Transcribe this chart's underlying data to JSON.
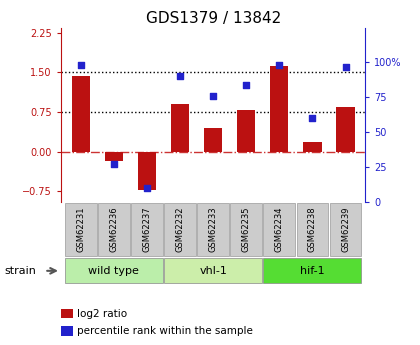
{
  "title": "GDS1379 / 13842",
  "samples": [
    "GSM62231",
    "GSM62236",
    "GSM62237",
    "GSM62232",
    "GSM62233",
    "GSM62235",
    "GSM62234",
    "GSM62238",
    "GSM62239"
  ],
  "log2_ratio": [
    1.43,
    -0.18,
    -0.72,
    0.9,
    0.45,
    0.78,
    1.62,
    0.18,
    0.85
  ],
  "percentile": [
    98,
    27,
    10,
    90,
    76,
    84,
    98,
    60,
    97
  ],
  "groups": [
    {
      "label": "wild type",
      "start": 0,
      "end": 3,
      "color": "#bbeeaa"
    },
    {
      "label": "vhl-1",
      "start": 3,
      "end": 6,
      "color": "#cceeaa"
    },
    {
      "label": "hif-1",
      "start": 6,
      "end": 9,
      "color": "#55dd33"
    }
  ],
  "ylim_left": [
    -0.95,
    2.35
  ],
  "ylim_right": [
    0,
    125
  ],
  "yticks_left": [
    -0.75,
    0,
    0.75,
    1.5,
    2.25
  ],
  "yticks_right": [
    0,
    25,
    50,
    75,
    100
  ],
  "bar_color": "#bb1111",
  "dot_color": "#2222cc",
  "title_fontsize": 11,
  "legend_items": [
    "log2 ratio",
    "percentile rank within the sample"
  ],
  "legend_colors": [
    "#bb1111",
    "#2222cc"
  ],
  "strain_label": "strain",
  "right_axis_color": "#2222cc",
  "left_axis_color": "#bb1111",
  "sample_bg_color": "#cccccc",
  "hline0_color": "#cc3333",
  "hline_dotted_color": "#000000"
}
